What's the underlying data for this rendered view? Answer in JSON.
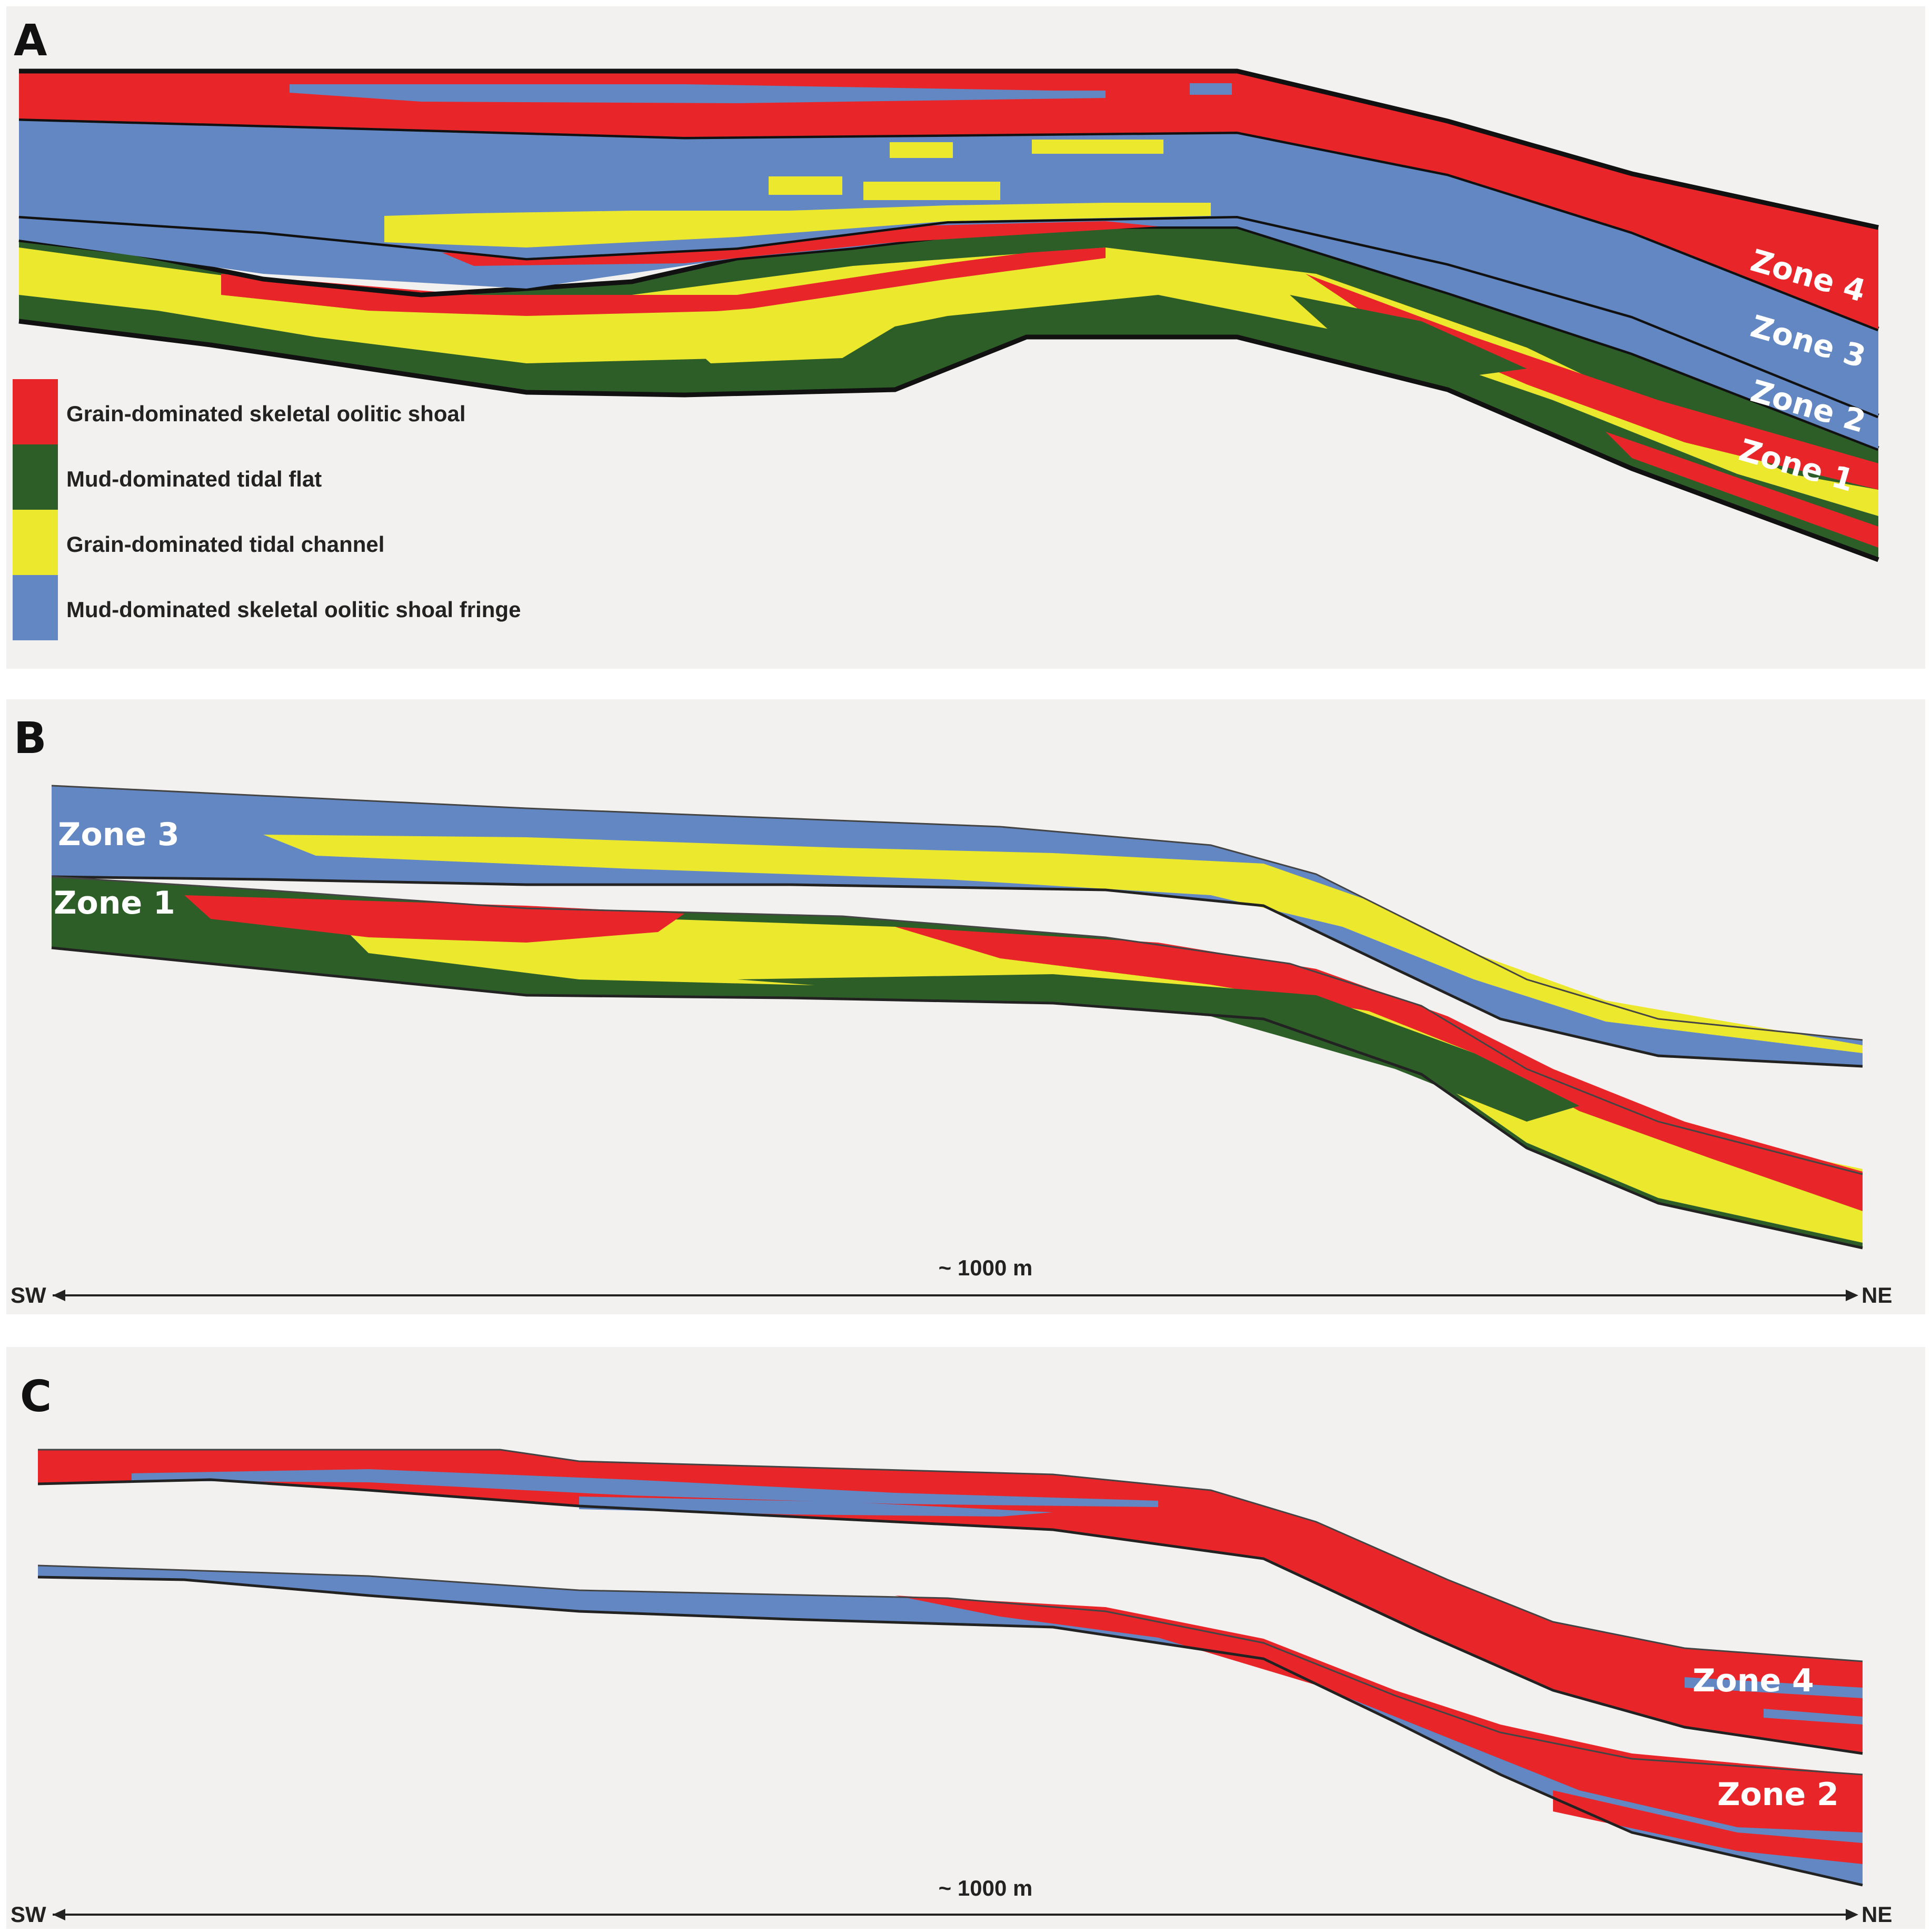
{
  "panels": {
    "a": {
      "letter": "A"
    },
    "b": {
      "letter": "B"
    },
    "c": {
      "letter": "C"
    }
  },
  "zones": {
    "zone1": "Zone 1",
    "zone2": "Zone 2",
    "zone3": "Zone 3",
    "zone4": "Zone 4"
  },
  "legend": [
    {
      "label": "Grain-dominated skeletal oolitic shoal",
      "color": "#e8262a"
    },
    {
      "label": "Mud-dominated tidal flat",
      "color": "#2e5e28"
    },
    {
      "label": "Grain-dominated tidal channel",
      "color": "#ece82e"
    },
    {
      "label": "Mud-dominated skeletal oolitic shoal fringe",
      "color": "#6287c2"
    }
  ],
  "scale": {
    "distance": "~ 1000 m",
    "left": "SW",
    "right": "NE"
  },
  "colors": {
    "shoal": "#e8262a",
    "tidal_flat": "#2e5e28",
    "tidal_channel": "#ece82e",
    "shoal_fringe": "#6287c2",
    "panel_bg": "#f3f1ef",
    "boundary": "#111111"
  }
}
